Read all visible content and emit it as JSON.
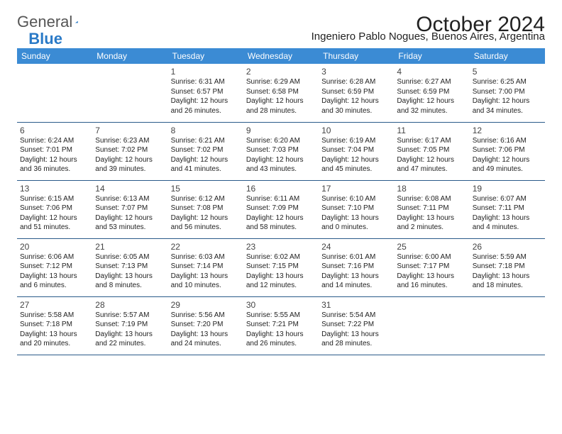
{
  "logo": {
    "text1": "General",
    "text2": "Blue"
  },
  "title": "October 2024",
  "subtitle": "Ingeniero Pablo Nogues, Buenos Aires, Argentina",
  "colors": {
    "header_bg": "#3b8bd4",
    "header_text": "#ffffff",
    "row_border": "#2a5a8a",
    "logo_gray": "#555555",
    "logo_blue": "#2a7ac7",
    "body_text": "#222222"
  },
  "typography": {
    "title_fontsize": 30,
    "subtitle_fontsize": 15,
    "day_header_fontsize": 12,
    "daynum_fontsize": 12,
    "dayinfo_fontsize": 10,
    "font_family": "Arial"
  },
  "calendar": {
    "day_headers": [
      "Sunday",
      "Monday",
      "Tuesday",
      "Wednesday",
      "Thursday",
      "Friday",
      "Saturday"
    ],
    "weeks": [
      [
        null,
        null,
        {
          "n": "1",
          "sunrise": "6:31 AM",
          "sunset": "6:57 PM",
          "daylight": "12 hours and 26 minutes."
        },
        {
          "n": "2",
          "sunrise": "6:29 AM",
          "sunset": "6:58 PM",
          "daylight": "12 hours and 28 minutes."
        },
        {
          "n": "3",
          "sunrise": "6:28 AM",
          "sunset": "6:59 PM",
          "daylight": "12 hours and 30 minutes."
        },
        {
          "n": "4",
          "sunrise": "6:27 AM",
          "sunset": "6:59 PM",
          "daylight": "12 hours and 32 minutes."
        },
        {
          "n": "5",
          "sunrise": "6:25 AM",
          "sunset": "7:00 PM",
          "daylight": "12 hours and 34 minutes."
        }
      ],
      [
        {
          "n": "6",
          "sunrise": "6:24 AM",
          "sunset": "7:01 PM",
          "daylight": "12 hours and 36 minutes."
        },
        {
          "n": "7",
          "sunrise": "6:23 AM",
          "sunset": "7:02 PM",
          "daylight": "12 hours and 39 minutes."
        },
        {
          "n": "8",
          "sunrise": "6:21 AM",
          "sunset": "7:02 PM",
          "daylight": "12 hours and 41 minutes."
        },
        {
          "n": "9",
          "sunrise": "6:20 AM",
          "sunset": "7:03 PM",
          "daylight": "12 hours and 43 minutes."
        },
        {
          "n": "10",
          "sunrise": "6:19 AM",
          "sunset": "7:04 PM",
          "daylight": "12 hours and 45 minutes."
        },
        {
          "n": "11",
          "sunrise": "6:17 AM",
          "sunset": "7:05 PM",
          "daylight": "12 hours and 47 minutes."
        },
        {
          "n": "12",
          "sunrise": "6:16 AM",
          "sunset": "7:06 PM",
          "daylight": "12 hours and 49 minutes."
        }
      ],
      [
        {
          "n": "13",
          "sunrise": "6:15 AM",
          "sunset": "7:06 PM",
          "daylight": "12 hours and 51 minutes."
        },
        {
          "n": "14",
          "sunrise": "6:13 AM",
          "sunset": "7:07 PM",
          "daylight": "12 hours and 53 minutes."
        },
        {
          "n": "15",
          "sunrise": "6:12 AM",
          "sunset": "7:08 PM",
          "daylight": "12 hours and 56 minutes."
        },
        {
          "n": "16",
          "sunrise": "6:11 AM",
          "sunset": "7:09 PM",
          "daylight": "12 hours and 58 minutes."
        },
        {
          "n": "17",
          "sunrise": "6:10 AM",
          "sunset": "7:10 PM",
          "daylight": "13 hours and 0 minutes."
        },
        {
          "n": "18",
          "sunrise": "6:08 AM",
          "sunset": "7:11 PM",
          "daylight": "13 hours and 2 minutes."
        },
        {
          "n": "19",
          "sunrise": "6:07 AM",
          "sunset": "7:11 PM",
          "daylight": "13 hours and 4 minutes."
        }
      ],
      [
        {
          "n": "20",
          "sunrise": "6:06 AM",
          "sunset": "7:12 PM",
          "daylight": "13 hours and 6 minutes."
        },
        {
          "n": "21",
          "sunrise": "6:05 AM",
          "sunset": "7:13 PM",
          "daylight": "13 hours and 8 minutes."
        },
        {
          "n": "22",
          "sunrise": "6:03 AM",
          "sunset": "7:14 PM",
          "daylight": "13 hours and 10 minutes."
        },
        {
          "n": "23",
          "sunrise": "6:02 AM",
          "sunset": "7:15 PM",
          "daylight": "13 hours and 12 minutes."
        },
        {
          "n": "24",
          "sunrise": "6:01 AM",
          "sunset": "7:16 PM",
          "daylight": "13 hours and 14 minutes."
        },
        {
          "n": "25",
          "sunrise": "6:00 AM",
          "sunset": "7:17 PM",
          "daylight": "13 hours and 16 minutes."
        },
        {
          "n": "26",
          "sunrise": "5:59 AM",
          "sunset": "7:18 PM",
          "daylight": "13 hours and 18 minutes."
        }
      ],
      [
        {
          "n": "27",
          "sunrise": "5:58 AM",
          "sunset": "7:18 PM",
          "daylight": "13 hours and 20 minutes."
        },
        {
          "n": "28",
          "sunrise": "5:57 AM",
          "sunset": "7:19 PM",
          "daylight": "13 hours and 22 minutes."
        },
        {
          "n": "29",
          "sunrise": "5:56 AM",
          "sunset": "7:20 PM",
          "daylight": "13 hours and 24 minutes."
        },
        {
          "n": "30",
          "sunrise": "5:55 AM",
          "sunset": "7:21 PM",
          "daylight": "13 hours and 26 minutes."
        },
        {
          "n": "31",
          "sunrise": "5:54 AM",
          "sunset": "7:22 PM",
          "daylight": "13 hours and 28 minutes."
        },
        null,
        null
      ]
    ]
  }
}
